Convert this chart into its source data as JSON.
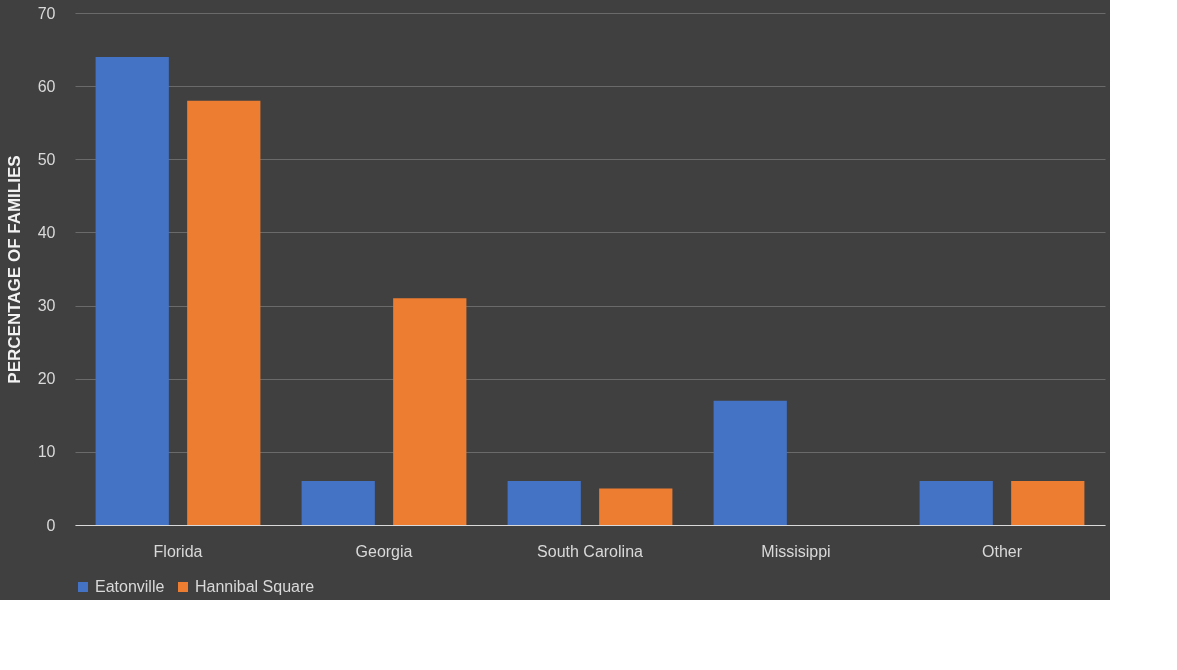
{
  "chart_data": {
    "type": "bar",
    "ylabel": "PERCENTAGE OF FAMILIES",
    "categories": [
      "Florida",
      "Georgia",
      "South Carolina",
      "Missisippi",
      "Other"
    ],
    "series": [
      {
        "name": "Eatonville",
        "color": "#4472c4",
        "values": [
          64,
          6,
          6,
          17,
          6
        ]
      },
      {
        "name": "Hannibal Square",
        "color": "#ed7d31",
        "values": [
          58,
          31,
          5,
          0,
          6
        ]
      }
    ],
    "ylim": [
      0,
      70
    ],
    "yticks": [
      0,
      10,
      20,
      30,
      40,
      50,
      60,
      70
    ],
    "grid": "y",
    "legend": "bottom"
  }
}
